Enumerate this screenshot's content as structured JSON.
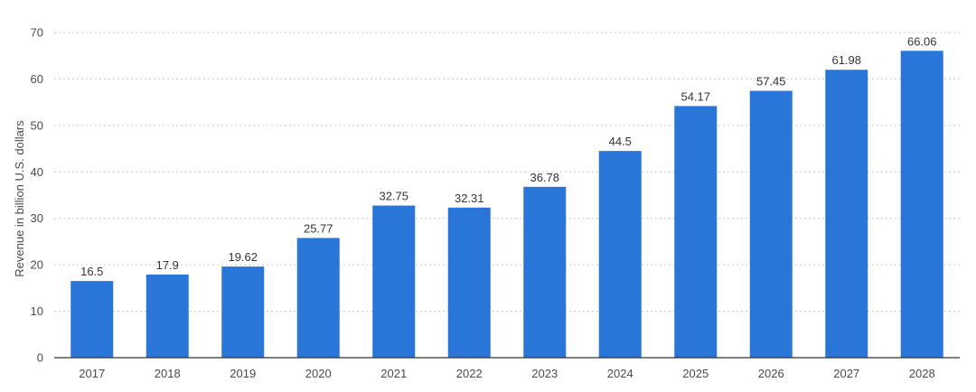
{
  "chart_data": {
    "type": "bar",
    "categories": [
      "2017",
      "2018",
      "2019",
      "2020",
      "2021",
      "2022",
      "2023",
      "2024",
      "2025",
      "2026",
      "2027",
      "2028"
    ],
    "values": [
      16.5,
      17.9,
      19.62,
      25.77,
      32.75,
      32.31,
      36.78,
      44.5,
      54.17,
      57.45,
      61.98,
      66.06
    ],
    "value_labels": [
      "16.5",
      "17.9",
      "19.62",
      "25.77",
      "32.75",
      "32.31",
      "36.78",
      "44.5",
      "54.17",
      "57.45",
      "61.98",
      "66.06"
    ],
    "title": "",
    "xlabel": "",
    "ylabel": "Revenue in billion U.S. dollars",
    "ylim": [
      0,
      70
    ],
    "yticks": [
      0,
      10,
      20,
      30,
      40,
      50,
      60,
      70
    ],
    "grid": true,
    "bar_color": "#2a76d8"
  }
}
